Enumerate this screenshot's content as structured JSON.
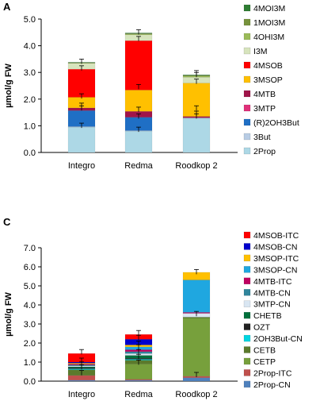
{
  "chart_data": [
    {
      "panel_label": "A",
      "type": "bar",
      "stacked": true,
      "ylabel": "µmol/g FW",
      "ylim": [
        0,
        5.0
      ],
      "yticks": [
        "0.0",
        "1.0",
        "2.0",
        "3.0",
        "4.0",
        "5.0"
      ],
      "categories": [
        "Integro",
        "Redma",
        "Roodkop 2"
      ],
      "legend_position": "right",
      "series": [
        {
          "name": "2Prop",
          "color": "#add8e6",
          "values": [
            0.95,
            0.8,
            1.28
          ]
        },
        {
          "name": "3But",
          "color": "#b8cce4",
          "values": [
            0.02,
            0.02,
            0.02
          ]
        },
        {
          "name": "(R)2OH3But",
          "color": "#1f6fc5",
          "values": [
            0.6,
            0.5,
            0.0
          ]
        },
        {
          "name": "3MTP",
          "color": "#e0307a",
          "values": [
            0.0,
            0.0,
            0.0
          ]
        },
        {
          "name": "4MTB",
          "color": "#a0154a",
          "values": [
            0.1,
            0.22,
            0.05
          ]
        },
        {
          "name": "3MSOP",
          "color": "#ffc000",
          "values": [
            0.4,
            0.8,
            1.25
          ]
        },
        {
          "name": "4MSOB",
          "color": "#ff0000",
          "values": [
            1.05,
            1.85,
            0.0
          ]
        },
        {
          "name": "I3M",
          "color": "#d7e4bd",
          "values": [
            0.22,
            0.22,
            0.22
          ]
        },
        {
          "name": "4OHI3M",
          "color": "#9bbb59",
          "values": [
            0.02,
            0.03,
            0.05
          ]
        },
        {
          "name": "1MOI3M",
          "color": "#77933c",
          "values": [
            0.01,
            0.02,
            0.02
          ]
        },
        {
          "name": "4MOI3M",
          "color": "#2e7d32",
          "values": [
            0.01,
            0.02,
            0.02
          ]
        }
      ],
      "error_bars": [
        {
          "category": "Integro",
          "values": [
            0.95,
            1.6,
            1.7,
            2.05,
            3.1,
            3.35
          ]
        },
        {
          "category": "Redma",
          "values": [
            0.8,
            1.3,
            1.55,
            2.4,
            4.2,
            4.45
          ]
        },
        {
          "category": "Roodkop 2",
          "values": [
            1.3,
            1.4,
            1.6,
            2.6,
            2.85,
            2.92
          ]
        }
      ]
    },
    {
      "panel_label": "C",
      "type": "bar",
      "stacked": true,
      "ylabel": "µmol/g FW",
      "ylim": [
        0,
        7.0
      ],
      "yticks": [
        "0.0",
        "1.0",
        "2.0",
        "3.0",
        "4.0",
        "5.0",
        "6.0",
        "7.0"
      ],
      "categories": [
        "Integro",
        "Redma",
        "Roodkop 2"
      ],
      "legend_position": "right",
      "series": [
        {
          "name": "2Prop-CN",
          "color": "#4f81bd",
          "values": [
            0.05,
            0.05,
            0.18
          ]
        },
        {
          "name": "2Prop-ITC",
          "color": "#c0504d",
          "values": [
            0.25,
            0.05,
            0.08
          ]
        },
        {
          "name": "CETP",
          "color": "#77a03c",
          "values": [
            0.0,
            0.8,
            3.05
          ]
        },
        {
          "name": "CETB",
          "color": "#5b7a2c",
          "values": [
            0.3,
            0.2,
            0.05
          ]
        },
        {
          "name": "2OH3But-CN",
          "color": "#00d5e0",
          "values": [
            0.05,
            0.05,
            0.0
          ]
        },
        {
          "name": "OZT",
          "color": "#222222",
          "values": [
            0.05,
            0.05,
            0.0
          ]
        },
        {
          "name": "CHETB",
          "color": "#00703c",
          "values": [
            0.05,
            0.15,
            0.0
          ]
        },
        {
          "name": "3MTP-CN",
          "color": "#d9e6f2",
          "values": [
            0.05,
            0.1,
            0.2
          ]
        },
        {
          "name": "4MTB-CN",
          "color": "#31859c",
          "values": [
            0.05,
            0.1,
            0.0
          ]
        },
        {
          "name": "4MTB-ITC",
          "color": "#c00060",
          "values": [
            0.05,
            0.1,
            0.05
          ]
        },
        {
          "name": "3MSOP-CN",
          "color": "#1fa7e0",
          "values": [
            0.0,
            0.15,
            1.7
          ]
        },
        {
          "name": "3MSOP-ITC",
          "color": "#ffc000",
          "values": [
            0.05,
            0.1,
            0.4
          ]
        },
        {
          "name": "4MSOB-CN",
          "color": "#0000cc",
          "values": [
            0.05,
            0.3,
            0.0
          ]
        },
        {
          "name": "4MSOB-ITC",
          "color": "#ff0000",
          "values": [
            0.45,
            0.25,
            0.0
          ]
        }
      ],
      "error_bars": [
        {
          "category": "Integro",
          "values": [
            0.35,
            0.65,
            0.8,
            1.0,
            1.45
          ]
        },
        {
          "category": "Redma",
          "values": [
            0.9,
            1.2,
            1.45,
            1.7,
            1.9,
            2.2,
            2.45
          ]
        },
        {
          "category": "Roodkop 2",
          "values": [
            0.25,
            3.45,
            5.65
          ]
        }
      ]
    }
  ]
}
